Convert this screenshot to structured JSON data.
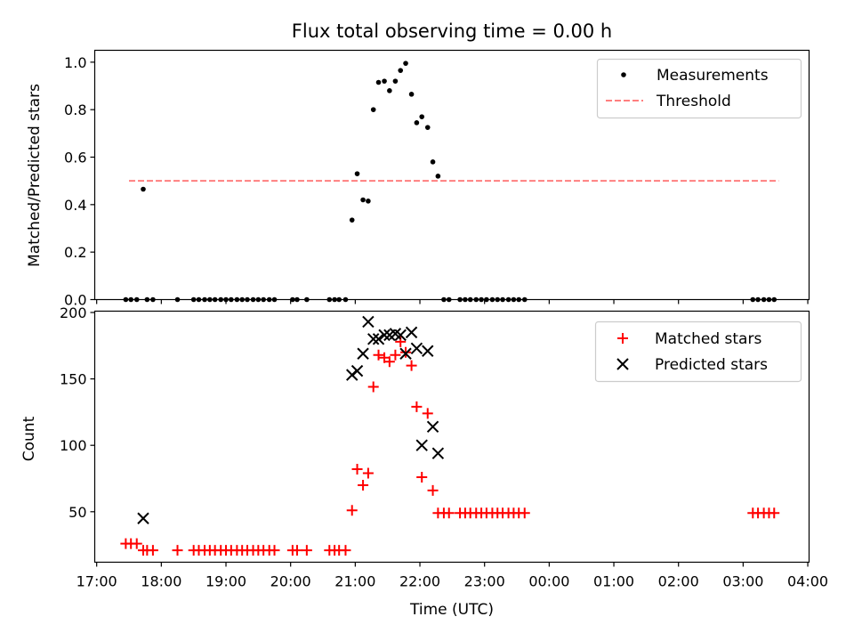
{
  "chart_data": [
    {
      "type": "scatter",
      "title": "Flux total observing time = 0.00 h",
      "xlabel": "",
      "ylabel": "Matched/Predicted stars",
      "ylim": [
        0,
        1.05
      ],
      "yticks": [
        "0.0",
        "0.2",
        "0.4",
        "0.6",
        "0.8",
        "1.0"
      ],
      "legend": "top-right",
      "legend_entries": [
        "Measurements",
        "Threshold"
      ],
      "threshold": {
        "name": "Threshold",
        "value": 0.5,
        "x_start": 17.5,
        "x_end": 27.55,
        "color": "#ff7f7f"
      },
      "series": [
        {
          "name": "Measurements",
          "color": "#000000",
          "x": [
            17.45,
            17.53,
            17.62,
            17.72,
            17.78,
            17.87,
            18.25,
            18.5,
            18.58,
            18.67,
            18.75,
            18.83,
            18.92,
            19.0,
            19.08,
            19.17,
            19.25,
            19.33,
            19.42,
            19.5,
            19.58,
            19.67,
            19.75,
            20.03,
            20.1,
            20.25,
            20.6,
            20.68,
            20.75,
            20.85,
            20.95,
            21.03,
            21.12,
            21.2,
            21.28,
            21.36,
            21.45,
            21.53,
            21.62,
            21.7,
            21.78,
            21.87,
            21.95,
            22.03,
            22.12,
            22.2,
            22.28,
            22.37,
            22.45,
            22.62,
            22.7,
            22.78,
            22.87,
            22.95,
            23.03,
            23.12,
            23.2,
            23.28,
            23.37,
            23.45,
            23.53,
            23.62,
            27.15,
            27.23,
            27.32,
            27.4,
            27.48
          ],
          "y": [
            0,
            0,
            0,
            0.465,
            0,
            0,
            0,
            0,
            0,
            0,
            0,
            0,
            0,
            0,
            0,
            0,
            0,
            0,
            0,
            0,
            0,
            0,
            0,
            0,
            0,
            0,
            0,
            0,
            0,
            0,
            0.335,
            0.53,
            0.42,
            0.415,
            0.8,
            0.915,
            0.92,
            0.88,
            0.92,
            0.965,
            0.995,
            0.865,
            0.745,
            0.77,
            0.725,
            0.58,
            0.52,
            0,
            0,
            0,
            0,
            0,
            0,
            0,
            0,
            0,
            0,
            0,
            0,
            0,
            0,
            0,
            0,
            0,
            0,
            0,
            0
          ]
        }
      ]
    },
    {
      "type": "scatter",
      "title": "",
      "xlabel": "Time (UTC)",
      "ylabel": "Count",
      "ylim": [
        12,
        201
      ],
      "yticks": [
        "50",
        "100",
        "150",
        "200"
      ],
      "xticks": [
        "17:00",
        "18:00",
        "19:00",
        "20:00",
        "21:00",
        "22:00",
        "23:00",
        "00:00",
        "01:00",
        "02:00",
        "03:00",
        "04:00"
      ],
      "legend": "top-right",
      "legend_entries": [
        "Matched stars",
        "Predicted stars"
      ],
      "series": [
        {
          "name": "Matched stars",
          "marker": "+",
          "color": "#ff0000",
          "x": [
            17.45,
            17.53,
            17.62,
            17.72,
            17.78,
            17.87,
            18.25,
            18.5,
            18.58,
            18.67,
            18.75,
            18.83,
            18.92,
            19.0,
            19.08,
            19.17,
            19.25,
            19.33,
            19.42,
            19.5,
            19.58,
            19.67,
            19.75,
            20.03,
            20.1,
            20.25,
            20.6,
            20.68,
            20.75,
            20.85,
            20.95,
            21.03,
            21.12,
            21.2,
            21.28,
            21.36,
            21.45,
            21.53,
            21.62,
            21.7,
            21.78,
            21.87,
            21.95,
            22.03,
            22.12,
            22.2,
            22.28,
            22.37,
            22.45,
            22.62,
            22.7,
            22.78,
            22.87,
            22.95,
            23.03,
            23.12,
            23.2,
            23.28,
            23.37,
            23.45,
            23.53,
            23.62,
            27.15,
            27.23,
            27.32,
            27.4,
            27.48
          ],
          "y": [
            26,
            26,
            26,
            21,
            21,
            21,
            21,
            21,
            21,
            21,
            21,
            21,
            21,
            21,
            21,
            21,
            21,
            21,
            21,
            21,
            21,
            21,
            21,
            21,
            21,
            21,
            21,
            21,
            21,
            21,
            51,
            82,
            70,
            79,
            144,
            168,
            166,
            163,
            168,
            178,
            170,
            160,
            129,
            76,
            124,
            66,
            49,
            49,
            49,
            49,
            49,
            49,
            49,
            49,
            49,
            49,
            49,
            49,
            49,
            49,
            49,
            49,
            49,
            49,
            49,
            49,
            49
          ]
        },
        {
          "name": "Predicted stars",
          "marker": "x",
          "color": "#000000",
          "x": [
            17.72,
            20.95,
            21.03,
            21.12,
            21.2,
            21.28,
            21.36,
            21.45,
            21.53,
            21.62,
            21.7,
            21.78,
            21.87,
            21.95,
            22.03,
            22.12,
            22.2,
            22.28
          ],
          "y": [
            45,
            153,
            156,
            169,
            193,
            180,
            180,
            183,
            183,
            184,
            183,
            169,
            185,
            173,
            100,
            171,
            114,
            94
          ]
        }
      ]
    }
  ]
}
